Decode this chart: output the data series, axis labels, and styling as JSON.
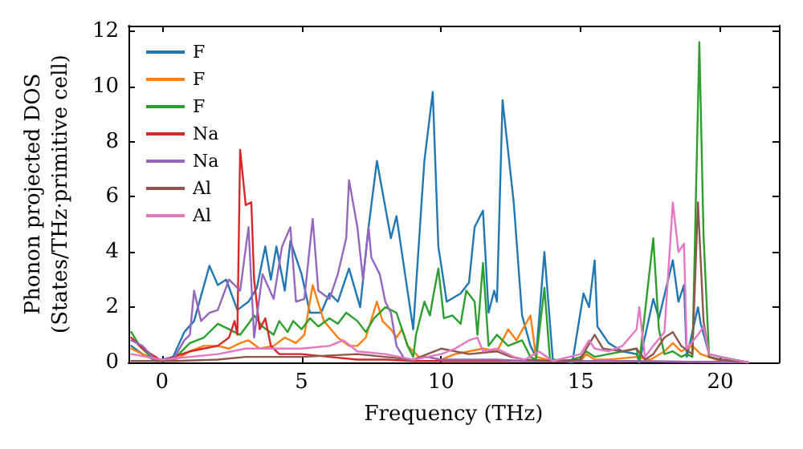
{
  "chart_data": {
    "type": "line",
    "xlabel": "Frequency (THz)",
    "ylabel": "Phonon projected DOS\n(States/THz·primitive cell)",
    "xlim": [
      -1.2,
      22.1
    ],
    "ylim": [
      0,
      12.2
    ],
    "xticks": [
      0,
      5,
      10,
      15,
      20
    ],
    "yticks": [
      0,
      2,
      4,
      6,
      8,
      10,
      12
    ],
    "grid": false,
    "legend": "top left",
    "marker": "none",
    "line_style": "solid",
    "series": [
      {
        "name": "F",
        "color": "#1f77b4",
        "x": [
          -1.1,
          -0.7,
          -0.2,
          0.4,
          0.8,
          1.15,
          1.7,
          2.0,
          2.3,
          2.7,
          3.1,
          3.4,
          3.7,
          3.9,
          4.1,
          4.4,
          4.6,
          5.0,
          5.3,
          5.7,
          6.0,
          6.3,
          6.7,
          7.1,
          7.4,
          7.7,
          8.2,
          8.4,
          9.0,
          9.3,
          9.4,
          9.7,
          9.9,
          10.2,
          10.7,
          11.0,
          11.2,
          11.5,
          11.7,
          11.9,
          12.0,
          12.2,
          12.6,
          12.9,
          13.2,
          13.4,
          13.7,
          14.0,
          14.7,
          15.1,
          15.3,
          15.5,
          15.6,
          16.0,
          16.5,
          17.0,
          17.1,
          17.6,
          17.8,
          18.3,
          18.5,
          18.7,
          18.8,
          19.2,
          19.3,
          19.6,
          20.0,
          21.0
        ],
        "values": [
          0.6,
          0.3,
          0.05,
          0.2,
          1.1,
          1.5,
          3.5,
          2.8,
          3.0,
          1.9,
          2.2,
          2.7,
          4.2,
          3.0,
          4.2,
          2.6,
          4.4,
          3.2,
          1.8,
          1.8,
          2.5,
          2.2,
          3.4,
          2.0,
          4.9,
          7.3,
          4.5,
          5.3,
          1.2,
          5.8,
          7.3,
          9.8,
          4.2,
          2.2,
          2.5,
          2.9,
          4.9,
          5.5,
          1.8,
          2.6,
          2.2,
          9.5,
          5.8,
          1.7,
          0.6,
          0.2,
          4.0,
          0.1,
          0.0,
          2.5,
          2.0,
          3.7,
          1.3,
          0.7,
          0.4,
          0.3,
          0.0,
          2.3,
          1.6,
          3.7,
          2.2,
          2.8,
          0.2,
          2.0,
          1.4,
          0.3,
          0.2,
          0.0
        ]
      },
      {
        "name": "F",
        "color": "#ff7f0e",
        "x": [
          -1.1,
          -0.7,
          0,
          0.5,
          1.0,
          1.5,
          2.0,
          2.4,
          2.8,
          3.1,
          3.5,
          4.0,
          4.4,
          4.8,
          5.1,
          5.4,
          5.8,
          6.3,
          6.7,
          7.0,
          7.3,
          7.7,
          7.9,
          8.2,
          8.4,
          8.6,
          8.8,
          9.2,
          9.5,
          10.0,
          10.5,
          11.0,
          11.5,
          12.0,
          12.4,
          12.7,
          13.2,
          13.4,
          14.0,
          15.0,
          15.2,
          15.5,
          16.0,
          17.0,
          17.5,
          18.0,
          18.3,
          18.6,
          19.0,
          19.3,
          20.0
        ],
        "values": [
          0.5,
          0.3,
          0.05,
          0.1,
          0.4,
          0.6,
          0.6,
          0.5,
          0.7,
          0.8,
          0.5,
          0.6,
          0.9,
          0.7,
          1.0,
          2.8,
          1.5,
          0.9,
          0.6,
          0.6,
          0.9,
          2.2,
          1.5,
          1.2,
          0.9,
          1.2,
          0.6,
          0.2,
          0.2,
          0.1,
          0.3,
          0.4,
          0.5,
          0.4,
          1.2,
          0.8,
          1.7,
          0.2,
          0.05,
          0.05,
          0.3,
          0.1,
          0.1,
          0.2,
          0.1,
          0.4,
          0.7,
          0.4,
          0.6,
          0.3,
          0.05
        ]
      },
      {
        "name": "F",
        "color": "#2ca02c",
        "x": [
          -1.1,
          -0.8,
          -0.3,
          0.4,
          1.0,
          1.5,
          2.0,
          2.4,
          2.8,
          3.1,
          3.3,
          3.6,
          4.0,
          4.2,
          4.5,
          4.7,
          5.0,
          5.3,
          5.6,
          6.0,
          6.3,
          6.6,
          7.0,
          7.3,
          7.6,
          8.0,
          8.4,
          8.8,
          9.0,
          9.1,
          9.4,
          9.6,
          9.7,
          9.9,
          10.1,
          10.4,
          10.7,
          10.9,
          11.2,
          11.3,
          11.5,
          11.7,
          12.0,
          12.4,
          12.9,
          13.2,
          13.4,
          13.7,
          13.9,
          14.5,
          15.0,
          15.2,
          15.5,
          16.0,
          16.5,
          17.0,
          17.1,
          17.6,
          17.8,
          18.0,
          18.3,
          18.6,
          18.8,
          19.0,
          19.25,
          19.4,
          19.6,
          20.0,
          21.0
        ],
        "values": [
          1.1,
          0.6,
          0.1,
          0.1,
          0.7,
          0.9,
          1.4,
          1.2,
          1.0,
          1.4,
          1.7,
          1.3,
          1.0,
          1.5,
          1.1,
          1.5,
          1.2,
          1.6,
          1.3,
          1.6,
          1.4,
          1.8,
          1.5,
          1.1,
          1.6,
          2.0,
          1.8,
          0.6,
          0.2,
          1.0,
          2.2,
          1.7,
          2.3,
          3.4,
          1.6,
          1.7,
          1.4,
          2.6,
          2.2,
          1.0,
          3.6,
          0.6,
          1.0,
          0.6,
          0.8,
          0.2,
          0.1,
          2.7,
          0.1,
          0.05,
          0.2,
          0.4,
          0.2,
          0.3,
          0.4,
          0.5,
          0.0,
          4.5,
          1.2,
          0.3,
          0.4,
          0.2,
          0.3,
          0.2,
          11.6,
          4.6,
          0.2,
          0.1,
          0.0
        ]
      },
      {
        "name": "Na",
        "color": "#d62728",
        "x": [
          -1.1,
          -0.7,
          0,
          1.0,
          1.5,
          2.0,
          2.4,
          2.6,
          2.7,
          2.8,
          3.0,
          3.2,
          3.3,
          3.5,
          3.7,
          3.9,
          4.2,
          5.0,
          6.0,
          7.0,
          8.0,
          9.0,
          12.0,
          16.0,
          21.0
        ],
        "values": [
          0.9,
          0.5,
          0.05,
          0.4,
          0.5,
          0.6,
          0.9,
          1.5,
          1.0,
          7.7,
          5.7,
          5.8,
          3.0,
          1.2,
          1.6,
          0.6,
          0.3,
          0.3,
          0.2,
          0.1,
          0.1,
          0.05,
          0.05,
          0.05,
          0.0
        ]
      },
      {
        "name": "Na",
        "color": "#9467bd",
        "x": [
          -1.1,
          -0.7,
          -0.2,
          0.4,
          0.8,
          1.0,
          1.15,
          1.4,
          1.7,
          2.0,
          2.4,
          2.8,
          3.1,
          3.3,
          3.6,
          4.0,
          4.3,
          4.6,
          4.8,
          5.1,
          5.4,
          5.6,
          6.0,
          6.3,
          6.6,
          6.7,
          7.0,
          7.2,
          7.4,
          7.5,
          7.8,
          8.0,
          8.2,
          8.4,
          8.7,
          9.0,
          9.5,
          10.0,
          11.0,
          12.0,
          13.0,
          16.0,
          21.0
        ],
        "values": [
          0.8,
          0.6,
          0.05,
          0.1,
          0.8,
          1.0,
          2.6,
          1.5,
          1.8,
          1.9,
          3.0,
          2.6,
          4.9,
          0.9,
          3.2,
          2.3,
          4.2,
          4.9,
          2.2,
          2.3,
          5.2,
          2.6,
          2.3,
          3.2,
          4.5,
          6.6,
          4.9,
          3.0,
          4.9,
          3.8,
          3.2,
          2.2,
          1.8,
          0.6,
          0.1,
          0.1,
          0.2,
          0.1,
          0.1,
          0.1,
          0.05,
          0.05,
          0.0
        ]
      },
      {
        "name": "Al",
        "color": "#8c564b",
        "x": [
          -1.1,
          0.5,
          2.0,
          3.0,
          5.0,
          7.0,
          8.0,
          9.0,
          10.0,
          11.0,
          12.0,
          12.5,
          13.0,
          14.0,
          15.0,
          15.2,
          15.5,
          15.8,
          16.5,
          17.0,
          17.3,
          17.6,
          18.0,
          18.3,
          18.6,
          19.0,
          19.2,
          19.4,
          19.6,
          20.0,
          21.0
        ],
        "values": [
          0.05,
          0.05,
          0.1,
          0.2,
          0.2,
          0.3,
          0.2,
          0.1,
          0.5,
          0.3,
          0.4,
          0.2,
          0.1,
          0.05,
          0.1,
          0.5,
          1.0,
          0.5,
          0.4,
          0.5,
          0.1,
          0.3,
          0.9,
          1.1,
          0.6,
          0.3,
          5.8,
          1.5,
          0.2,
          0.1,
          0.0
        ]
      },
      {
        "name": "Al",
        "color": "#e377c2",
        "x": [
          -1.1,
          0,
          1.0,
          2.0,
          3.0,
          4.0,
          5.0,
          6.0,
          6.5,
          7.0,
          8.0,
          9.0,
          10.0,
          10.5,
          11.0,
          11.3,
          11.5,
          12.0,
          12.6,
          13.0,
          13.5,
          14.0,
          15.0,
          15.3,
          15.5,
          16.0,
          16.5,
          17.0,
          17.1,
          17.3,
          17.6,
          18.0,
          18.3,
          18.5,
          18.7,
          18.8,
          19.2,
          19.4,
          19.6,
          20.0,
          20.5,
          21.0
        ],
        "values": [
          0.3,
          0.1,
          0.2,
          0.3,
          0.5,
          0.5,
          0.5,
          0.6,
          0.8,
          0.4,
          0.3,
          0.1,
          0.3,
          0.5,
          0.8,
          0.9,
          0.4,
          0.5,
          0.2,
          0.1,
          0.4,
          0.05,
          0.3,
          0.8,
          0.5,
          0.4,
          0.6,
          1.2,
          2.0,
          0.2,
          0.6,
          1.1,
          5.8,
          4.0,
          4.3,
          0.5,
          1.0,
          1.3,
          0.3,
          0.2,
          0.1,
          0.0
        ]
      }
    ]
  }
}
